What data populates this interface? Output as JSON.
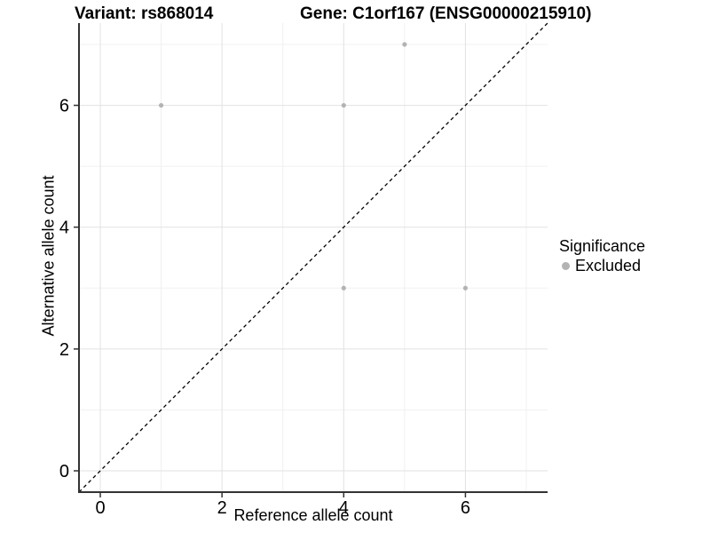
{
  "title": {
    "variant": "Variant: rs868014",
    "gene": "Gene: C1orf167 (ENSG00000215910)"
  },
  "axes": {
    "x_label": "Reference allele count",
    "y_label": "Alternative allele count"
  },
  "legend": {
    "title": "Significance",
    "items": [
      {
        "label": "Excluded",
        "color": "#b3b3b3"
      }
    ]
  },
  "colors": {
    "background": "#ffffff",
    "axis_line": "#333333",
    "major_grid": "#e2e2e2",
    "minor_grid": "#f0f0f0",
    "point": "#b3b3b3",
    "identity_line": "#000000",
    "text": "#000000"
  },
  "chart_data": {
    "type": "scatter",
    "title": "Variant: rs868014   Gene: C1orf167 (ENSG00000215910)",
    "xlabel": "Reference allele count",
    "ylabel": "Alternative allele count",
    "xlim": [
      -0.35,
      7.35
    ],
    "ylim": [
      -0.35,
      7.35
    ],
    "x_major_ticks": [
      0,
      2,
      4,
      6
    ],
    "y_major_ticks": [
      0,
      2,
      4,
      6
    ],
    "x_minor_ticks": [
      1,
      3,
      5,
      7
    ],
    "y_minor_ticks": [
      1,
      3,
      5,
      7
    ],
    "grid": true,
    "legend_position": "right",
    "series": [
      {
        "name": "Excluded",
        "color": "#b3b3b3",
        "points": [
          [
            1,
            6
          ],
          [
            4,
            6
          ],
          [
            5,
            7
          ],
          [
            4,
            3
          ],
          [
            6,
            3
          ]
        ]
      }
    ],
    "identity_line": {
      "style": "dashed",
      "color": "#000000",
      "from": [
        -0.35,
        -0.35
      ],
      "to": [
        7.35,
        7.35
      ]
    }
  }
}
